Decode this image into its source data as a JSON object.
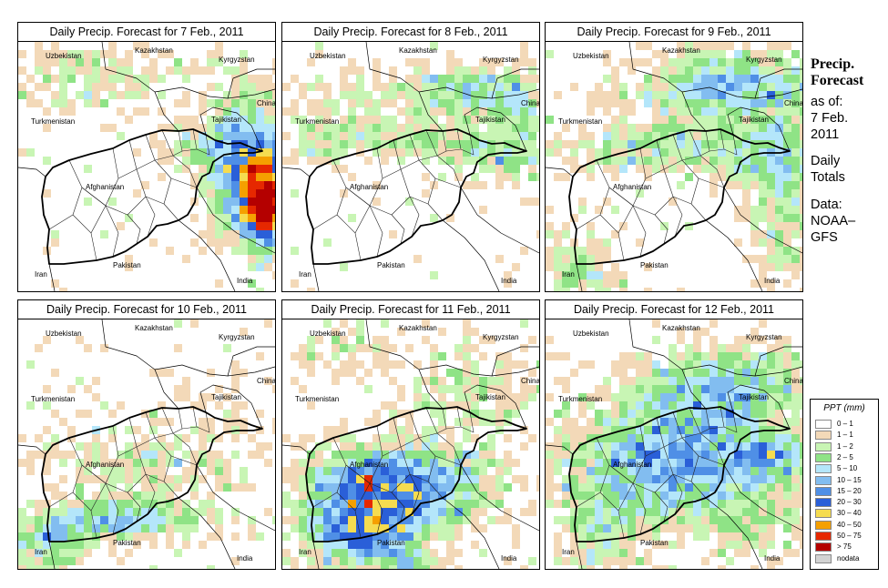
{
  "panels": [
    {
      "title": "Daily Precip. Forecast for  7 Feb., 2011",
      "scenario": "east"
    },
    {
      "title": "Daily Precip. Forecast for  8 Feb., 2011",
      "scenario": "north"
    },
    {
      "title": "Daily Precip. Forecast for  9 Feb., 2011",
      "scenario": "northwide"
    },
    {
      "title": "Daily Precip. Forecast for  10 Feb., 2011",
      "scenario": "southwest"
    },
    {
      "title": "Daily Precip. Forecast for  11 Feb., 2011",
      "scenario": "central"
    },
    {
      "title": "Daily Precip. Forecast for  12 Feb., 2011",
      "scenario": "widespread"
    }
  ],
  "countries": {
    "uzbekistan": "Uzbekistan",
    "kazakhstan": "Kazakhstan",
    "kyrgyzstan": "Kyrgyzstan",
    "turkmenistan": "Turkmenistan",
    "tajikistan": "Tajikistan",
    "china": "China",
    "afghanistan": "Afghanistan",
    "pakistan": "Pakistan",
    "iran": "Iran",
    "india": "India"
  },
  "side": {
    "heading1": "Precip.",
    "heading2": "Forecast",
    "asof": "as of:",
    "date1": "7 Feb.",
    "date2": "2011",
    "daily": "Daily",
    "totals": "Totals",
    "data_label": "Data:",
    "data_src1": "NOAA–",
    "data_src2": "GFS"
  },
  "legend": {
    "title": "PPT (mm)",
    "items": [
      {
        "label": "0 – 1",
        "color": "#ffffff"
      },
      {
        "label": "1 – 1",
        "color": "#f3d9b8"
      },
      {
        "label": "1 – 2",
        "color": "#c8f5b4"
      },
      {
        "label": "2 – 5",
        "color": "#8fe386"
      },
      {
        "label": "5 – 10",
        "color": "#b4e6fa"
      },
      {
        "label": "10 – 15",
        "color": "#82bdf0"
      },
      {
        "label": "15 – 20",
        "color": "#4f8fe6"
      },
      {
        "label": "20 – 30",
        "color": "#2a5fd8"
      },
      {
        "label": "30 – 40",
        "color": "#f5dc50"
      },
      {
        "label": "40 – 50",
        "color": "#f5a000"
      },
      {
        "label": "50 – 75",
        "color": "#e62800"
      },
      {
        "label": "> 75",
        "color": "#b40000"
      },
      {
        "label": "nodata",
        "color": "#d2d2d2"
      }
    ]
  }
}
